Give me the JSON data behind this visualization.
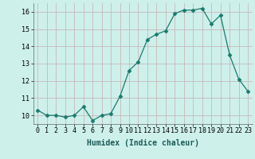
{
  "x": [
    0,
    1,
    2,
    3,
    4,
    5,
    6,
    7,
    8,
    9,
    10,
    11,
    12,
    13,
    14,
    15,
    16,
    17,
    18,
    19,
    20,
    21,
    22,
    23
  ],
  "y": [
    10.3,
    10.0,
    10.0,
    9.9,
    10.0,
    10.5,
    9.7,
    10.0,
    10.1,
    11.1,
    12.6,
    13.1,
    14.4,
    14.7,
    14.9,
    15.9,
    16.1,
    16.1,
    16.2,
    15.3,
    15.8,
    13.5,
    12.1,
    11.4
  ],
  "xlabel": "Humidex (Indice chaleur)",
  "ylim": [
    9.5,
    16.5
  ],
  "xlim": [
    -0.5,
    23.5
  ],
  "yticks": [
    10,
    11,
    12,
    13,
    14,
    15,
    16
  ],
  "xtick_labels": [
    "0",
    "1",
    "2",
    "3",
    "4",
    "5",
    "6",
    "7",
    "8",
    "9",
    "10",
    "11",
    "12",
    "13",
    "14",
    "15",
    "16",
    "17",
    "18",
    "19",
    "20",
    "21",
    "22",
    "23"
  ],
  "line_color": "#1a7a6e",
  "marker": "D",
  "marker_size": 2.5,
  "bg_color": "#cef0eb",
  "grid_color_h": "#c8b8b8",
  "grid_color_v": "#c8b8b8",
  "tick_fontsize": 6,
  "xlabel_fontsize": 7
}
